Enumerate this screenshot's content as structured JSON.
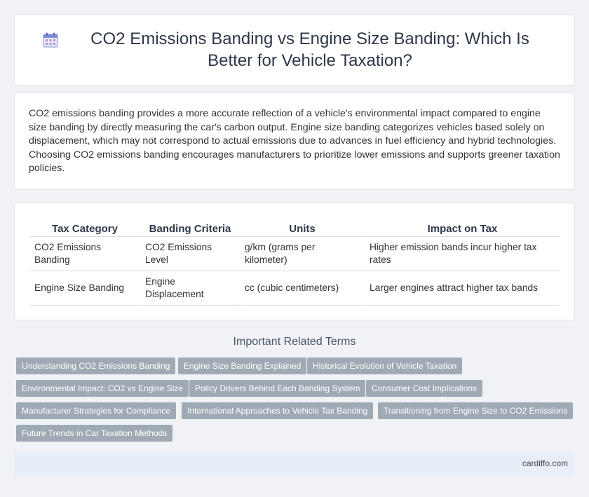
{
  "header": {
    "icon": "calendar-icon",
    "title": "CO2 Emissions Banding vs Engine Size Banding: Which Is Better for Vehicle Taxation?"
  },
  "intro": {
    "text": "CO2 emissions banding provides a more accurate reflection of a vehicle's environmental impact compared to engine size banding by directly measuring the car's carbon output. Engine size banding categorizes vehicles based solely on displacement, which may not correspond to actual emissions due to advances in fuel efficiency and hybrid technologies. Choosing CO2 emissions banding encourages manufacturers to prioritize lower emissions and supports greener taxation policies."
  },
  "table": {
    "headers": [
      "Tax Category",
      "Banding Criteria",
      "Units",
      "Impact on Tax"
    ],
    "rows": [
      [
        "CO2 Emissions Banding",
        "CO2 Emissions Level",
        "g/km (grams per kilometer)",
        "Higher emission bands incur higher tax rates"
      ],
      [
        "Engine Size Banding",
        "Engine Displacement",
        "cc (cubic centimeters)",
        "Larger engines attract higher tax bands"
      ]
    ]
  },
  "related": {
    "title": "Important Related Terms",
    "tags": [
      "Understanding CO2 Emissions Banding",
      "Engine Size Banding Explained",
      "Historical Evolution of Vehicle Taxation",
      "Environmental Impact: CO2 vs Engine Size",
      "Policy Drivers Behind Each Banding System",
      "Consumer Cost Implications",
      "Manufacturer Strategies for Compliance",
      "International Approaches to Vehicle Tax Banding",
      "Transitioning from Engine Size to CO2 Emissions",
      "Future Trends in Car Taxation Methods"
    ]
  },
  "footer": {
    "site": "cardiffo.com"
  },
  "colors": {
    "tag_bg": "#a0aab5",
    "footer_bg": "#e8eef8",
    "page_bg": "#f0f2f5"
  }
}
